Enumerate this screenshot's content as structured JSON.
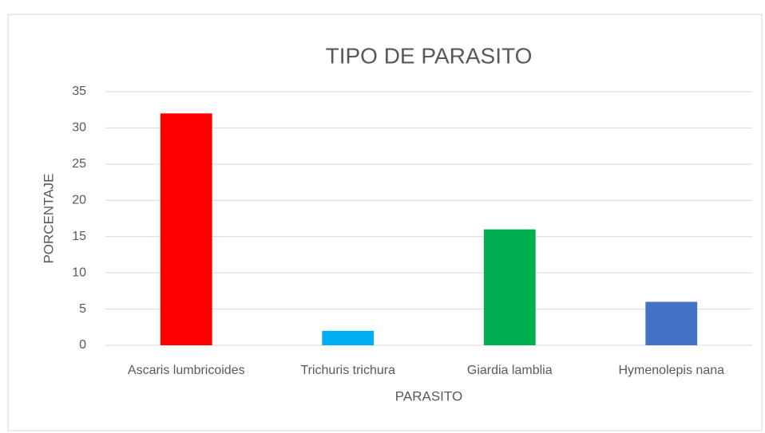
{
  "chart_data": {
    "type": "bar",
    "title": "TIPO DE PARASITO",
    "x_label": "PARASITO",
    "y_label": "PORCENTAJE",
    "categories": [
      "Ascaris lumbricoides",
      "Trichuris trichura",
      "Giardia lamblia",
      "Hymenolepis nana"
    ],
    "values": [
      32,
      2,
      16,
      6
    ],
    "colors": [
      "#ff0000",
      "#00b0f0",
      "#00b050",
      "#4472c4"
    ],
    "ylim": [
      0,
      35
    ],
    "yticks": [
      0,
      5,
      10,
      15,
      20,
      25,
      30,
      35
    ],
    "grid": true
  }
}
